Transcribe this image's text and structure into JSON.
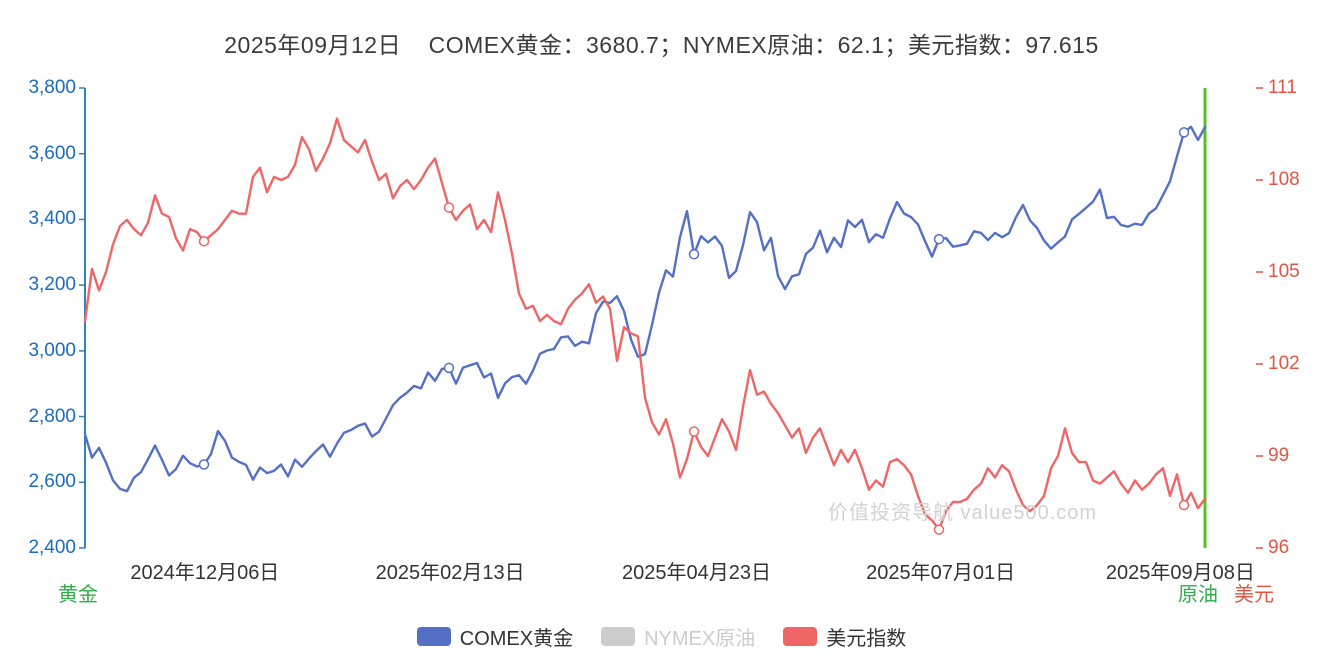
{
  "title": "2025年09月12日    COMEX黄金：3680.7；NYMEX原油：62.1；美元指数：97.615",
  "watermark": "价值投资导航 value500.com",
  "legend": [
    {
      "label": "COMEX黄金",
      "color": "#5470c6",
      "text_color": "#333333",
      "active": true
    },
    {
      "label": "NYMEX原油",
      "color": "#cccccc",
      "text_color": "#cccccc",
      "active": false
    },
    {
      "label": "美元指数",
      "color": "#ee6666",
      "text_color": "#333333",
      "active": true
    }
  ],
  "axes": {
    "left": {
      "name": "黄金",
      "name_color": "#2fae49",
      "line_color": "#3182bd",
      "label_color": "#1a6bc0"
    },
    "oil": {
      "name": "原油",
      "name_color": "#2fae49",
      "line_color": "#57c226"
    },
    "usd": {
      "name": "美元",
      "name_color": "#e25544",
      "label_color": "#e25544",
      "tick_color": "#e25544"
    }
  },
  "chart_data": {
    "type": "line",
    "title": "2025年09月12日 COMEX黄金：3680.7；NYMEX原油：62.1；美元指数：97.615",
    "grid": false,
    "legend_position": "bottom",
    "x_range": [
      "2024-11-04",
      "2025-09-12"
    ],
    "x_tick_labels": [
      "2024年12月06日",
      "2025年02月13日",
      "2025年04月23日",
      "2025年07月01日",
      "2025年09月08日"
    ],
    "x_tick_positions": [
      0.107,
      0.326,
      0.546,
      0.764,
      0.978
    ],
    "marker_indices": [
      17,
      52,
      87,
      122,
      157
    ],
    "left_ylim": [
      2400,
      3800
    ],
    "left_tick_values": [
      3800,
      3600,
      3400,
      3200,
      3000,
      2800,
      2600,
      2400
    ],
    "left_tick_labels": [
      "3,800",
      "3,600",
      "3,400",
      "3,200",
      "3,000",
      "2,800",
      "2,600",
      "2,400"
    ],
    "right_ylim": [
      96,
      111
    ],
    "right_tick_values": [
      111,
      108,
      105,
      102,
      99,
      96
    ],
    "right_tick_labels": [
      "111",
      "108",
      "105",
      "102",
      "99",
      "96"
    ],
    "series": [
      {
        "name": "COMEX黄金",
        "axis": "left",
        "color": "#5470c6",
        "current": 3680.7,
        "hidden": false,
        "values": [
          2746,
          2675,
          2705,
          2660,
          2606,
          2580,
          2573,
          2614,
          2631,
          2670,
          2712,
          2668,
          2621,
          2640,
          2681,
          2658,
          2648,
          2654,
          2686,
          2756,
          2726,
          2675,
          2662,
          2653,
          2608,
          2645,
          2628,
          2635,
          2654,
          2618,
          2669,
          2647,
          2672,
          2695,
          2715,
          2678,
          2718,
          2751,
          2759,
          2772,
          2779,
          2739,
          2754,
          2794,
          2835,
          2857,
          2873,
          2893,
          2886,
          2934,
          2909,
          2945,
          2948,
          2900,
          2949,
          2956,
          2963,
          2919,
          2931,
          2857,
          2901,
          2920,
          2926,
          2900,
          2940,
          2991,
          3001,
          3006,
          3041,
          3044,
          3015,
          3028,
          3023,
          3115,
          3150,
          3146,
          3166,
          3121,
          3035,
          2982,
          2990,
          3079,
          3177,
          3245,
          3226,
          3346,
          3425,
          3294,
          3349,
          3330,
          3348,
          3319,
          3222,
          3243,
          3322,
          3422,
          3392,
          3306,
          3344,
          3228,
          3188,
          3227,
          3233,
          3295,
          3314,
          3366,
          3300,
          3344,
          3316,
          3397,
          3377,
          3399,
          3331,
          3355,
          3344,
          3403,
          3453,
          3418,
          3407,
          3385,
          3334,
          3287,
          3340,
          3343,
          3317,
          3321,
          3326,
          3364,
          3359,
          3337,
          3359,
          3346,
          3358,
          3407,
          3444,
          3397,
          3374,
          3336,
          3311,
          3330,
          3348,
          3400,
          3417,
          3435,
          3454,
          3491,
          3404,
          3408,
          3383,
          3378,
          3387,
          3383,
          3418,
          3434,
          3474,
          3516,
          3592,
          3665,
          3682,
          3642,
          3681
        ]
      },
      {
        "name": "NYMEX原油",
        "axis": "oil",
        "color": "#cccccc",
        "current": 62.1,
        "hidden": true,
        "values": []
      },
      {
        "name": "美元指数",
        "axis": "right",
        "color": "#ee6666",
        "current": 97.615,
        "hidden": false,
        "values": [
          103.4,
          105.1,
          104.4,
          105.0,
          105.9,
          106.5,
          106.7,
          106.4,
          106.2,
          106.6,
          107.5,
          106.9,
          106.8,
          106.1,
          105.7,
          106.4,
          106.3,
          106.0,
          106.2,
          106.4,
          106.7,
          107.0,
          106.9,
          106.9,
          108.1,
          108.4,
          107.6,
          108.1,
          108.0,
          108.1,
          108.5,
          109.4,
          109.0,
          108.3,
          108.7,
          109.2,
          110.0,
          109.3,
          109.1,
          108.9,
          109.3,
          108.6,
          108.0,
          108.2,
          107.4,
          107.8,
          108.0,
          107.7,
          108.0,
          108.4,
          108.7,
          107.9,
          107.1,
          106.7,
          107.0,
          107.2,
          106.4,
          106.7,
          106.3,
          107.6,
          106.7,
          105.6,
          104.3,
          103.8,
          103.9,
          103.4,
          103.6,
          103.4,
          103.3,
          103.8,
          104.1,
          104.3,
          104.6,
          104.0,
          104.2,
          103.8,
          102.1,
          103.2,
          103.0,
          102.9,
          100.9,
          100.1,
          99.7,
          100.2,
          99.4,
          98.3,
          98.9,
          99.8,
          99.3,
          99.0,
          99.6,
          100.2,
          99.8,
          99.2,
          100.6,
          101.8,
          101.0,
          101.1,
          100.7,
          100.4,
          100.0,
          99.6,
          99.9,
          99.1,
          99.6,
          99.9,
          99.3,
          98.7,
          99.2,
          98.8,
          99.2,
          98.6,
          97.9,
          98.2,
          98.0,
          98.8,
          98.9,
          98.7,
          98.4,
          97.7,
          97.1,
          96.9,
          96.6,
          97.2,
          97.5,
          97.5,
          97.6,
          97.9,
          98.1,
          98.6,
          98.3,
          98.7,
          98.5,
          97.9,
          97.4,
          97.2,
          97.4,
          97.7,
          98.6,
          99.0,
          99.9,
          99.1,
          98.8,
          98.8,
          98.2,
          98.1,
          98.3,
          98.5,
          98.1,
          97.8,
          98.2,
          97.9,
          98.1,
          98.4,
          98.6,
          97.7,
          98.4,
          97.4,
          97.8,
          97.3,
          97.6
        ]
      }
    ]
  }
}
